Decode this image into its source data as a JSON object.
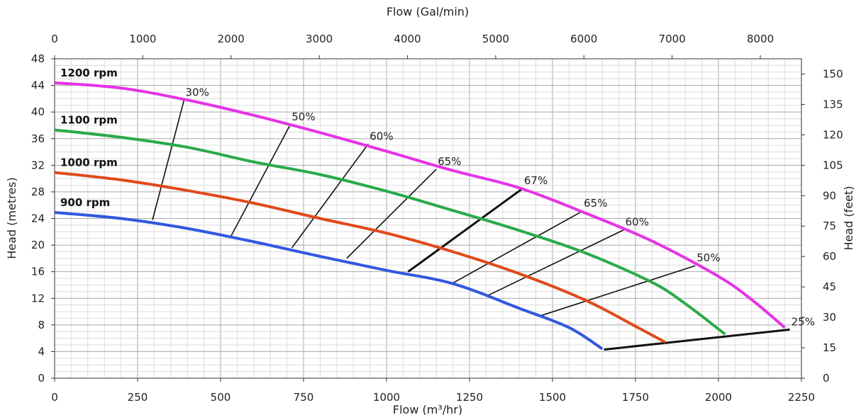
{
  "chart_data": {
    "type": "line",
    "xlabel": "Flow (m³/hr)",
    "x2label": "Flow (Gal/min)",
    "ylabel": "Head (metres)",
    "y2label": "Head (feet)",
    "xlim": [
      0,
      2250
    ],
    "ylim": [
      0,
      48
    ],
    "x2lim": [
      0,
      8466
    ],
    "y2lim": [
      0,
      157.5
    ],
    "grid": true,
    "x_ticks": [
      "0",
      "250",
      "500",
      "750",
      "1000",
      "1250",
      "1500",
      "1750",
      "2000",
      "2250"
    ],
    "y_ticks": [
      "0",
      "4",
      "8",
      "12",
      "16",
      "20",
      "24",
      "28",
      "32",
      "36",
      "40",
      "44",
      "48"
    ],
    "x2_ticks": [
      "0",
      "1000",
      "2000",
      "3000",
      "4000",
      "5000",
      "6000",
      "7000",
      "8000"
    ],
    "y2_ticks": [
      "0",
      "15",
      "30",
      "45",
      "60",
      "75",
      "90",
      "105",
      "120",
      "135",
      "150"
    ],
    "series": [
      {
        "name": "1200 rpm",
        "color": "#e633e6",
        "x": [
          0,
          200,
          400,
          600,
          800,
          1000,
          1200,
          1400,
          1600,
          1800,
          2000,
          2100,
          2200
        ],
        "y": [
          44.4,
          43.6,
          41.8,
          39.5,
          36.9,
          34.1,
          31.2,
          28.6,
          24.8,
          20.6,
          15.3,
          11.8,
          7.6
        ]
      },
      {
        "name": "1100 rpm",
        "color": "#2aaa4a",
        "x": [
          0,
          200,
          400,
          600,
          800,
          1000,
          1200,
          1400,
          1600,
          1800,
          1900,
          2020
        ],
        "y": [
          37.3,
          36.2,
          34.7,
          32.5,
          30.6,
          28.1,
          25.2,
          22.2,
          18.8,
          14.4,
          11.2,
          6.6
        ]
      },
      {
        "name": "1000 rpm",
        "color": "#e04a1a",
        "x": [
          0,
          200,
          400,
          600,
          800,
          1000,
          1200,
          1400,
          1600,
          1750,
          1840
        ],
        "y": [
          30.9,
          29.8,
          28.2,
          26.3,
          24.0,
          21.8,
          19.0,
          15.7,
          11.7,
          7.8,
          5.4
        ]
      },
      {
        "name": "900 rpm",
        "color": "#3158e0",
        "x": [
          0,
          200,
          400,
          600,
          800,
          1000,
          1200,
          1400,
          1550,
          1650
        ],
        "y": [
          24.9,
          24.0,
          22.5,
          20.5,
          18.3,
          16.2,
          14.2,
          10.5,
          7.6,
          4.4
        ]
      }
    ],
    "efficiency_lines": [
      {
        "label": "30%",
        "x": [
          295,
          390
        ],
        "y": [
          23.8,
          41.8
        ]
      },
      {
        "label": "50%",
        "x": [
          530,
          710
        ],
        "y": [
          21.2,
          38.1
        ]
      },
      {
        "label": "60%",
        "x": [
          715,
          945
        ],
        "y": [
          19.6,
          35.2
        ]
      },
      {
        "label": "65%",
        "x": [
          880,
          1150
        ],
        "y": [
          18.0,
          31.4
        ]
      },
      {
        "label": "67%",
        "x": [
          1065,
          1410
        ],
        "y": [
          16.0,
          28.5
        ],
        "bold": true
      },
      {
        "label": "65%",
        "x": [
          1200,
          1590
        ],
        "y": [
          14.3,
          25.1
        ]
      },
      {
        "label": "60%",
        "x": [
          1300,
          1715
        ],
        "y": [
          12.3,
          22.3
        ]
      },
      {
        "label": "50%",
        "x": [
          1465,
          1930
        ],
        "y": [
          9.4,
          16.9
        ]
      },
      {
        "label": "25%",
        "x": [
          1655,
          2215
        ],
        "y": [
          4.3,
          7.3
        ],
        "bold": true
      }
    ]
  }
}
